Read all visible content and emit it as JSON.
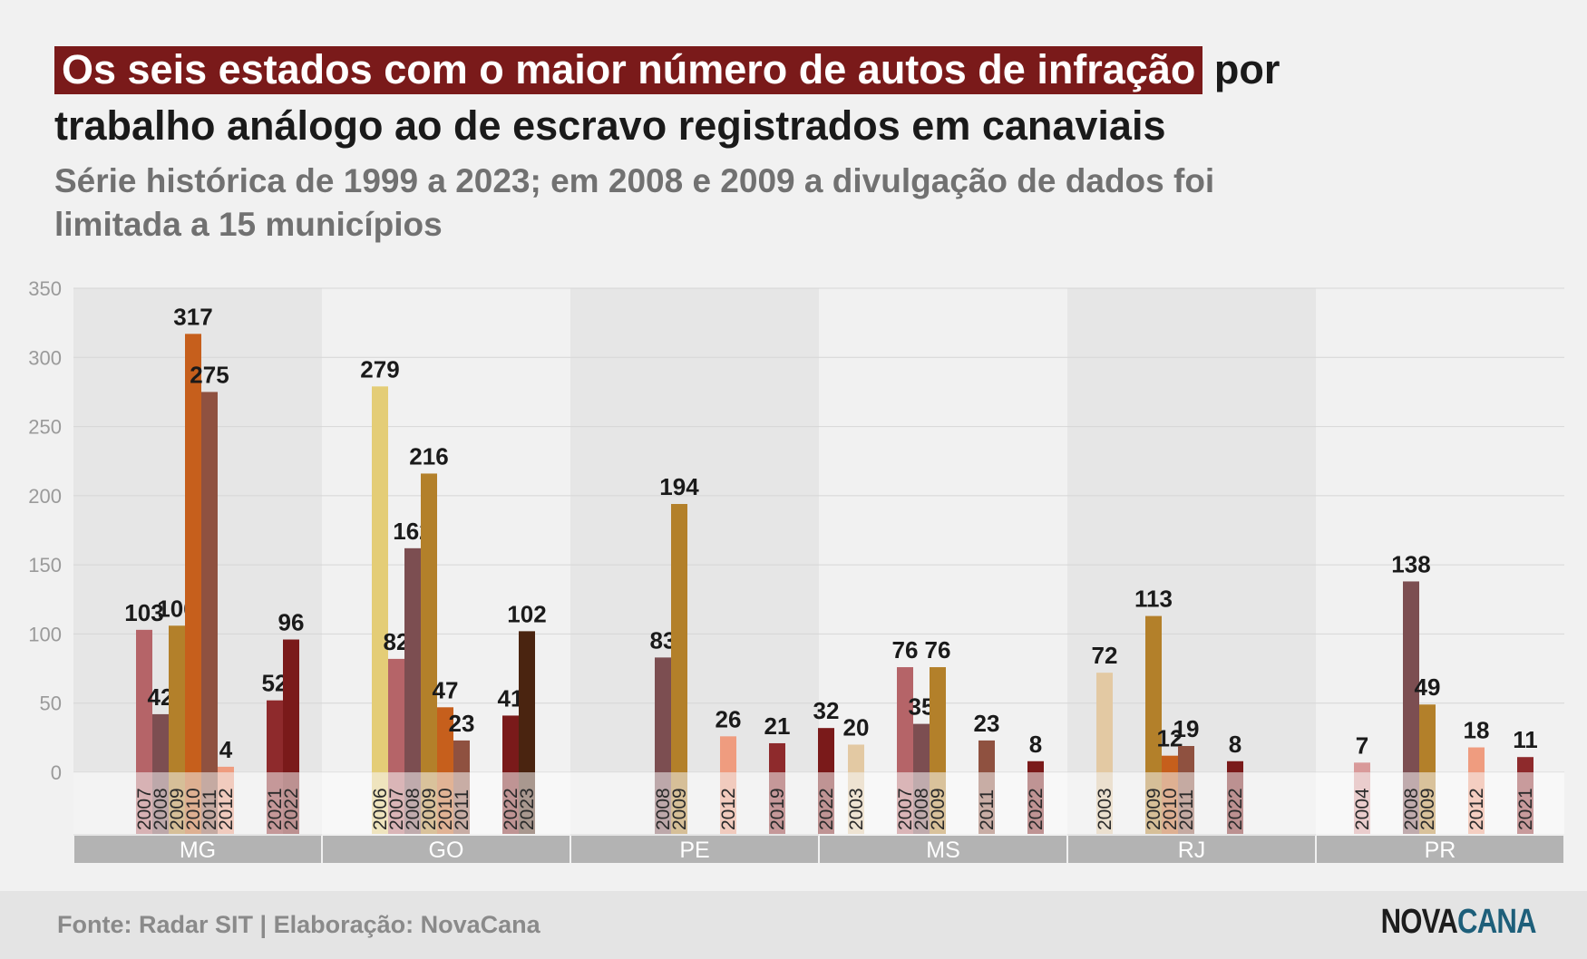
{
  "title": {
    "highlight": "Os seis estados com o maior número de autos de infração",
    "rest": " por trabalho análogo ao de escravo registrados em canaviais"
  },
  "subtitle": "Série histórica de 1999 a 2023; em 2008 e 2009 a divulgação de dados foi limitada a 15 municípios",
  "footer": {
    "source": "Fonte: Radar SIT | Elaboração: NovaCana",
    "logo_part1": "NOVA",
    "logo_part2": "CANA"
  },
  "colors": {
    "panel_shade": "#e6e6e6",
    "panel_light": "#f1f1f1",
    "state_bar": "#b3b3b3",
    "highlight": "#7a1a1a",
    "logo_accent": "#1e5f7a"
  },
  "year_colors": {
    "2003": "#e3c9a3",
    "2004": "#d99a9a",
    "2006": "#e4cd77",
    "2007": "#b56468",
    "2008": "#7c4e51",
    "2009": "#b3802a",
    "2010": "#c65f1c",
    "2011": "#8f5140",
    "2012": "#ef9c7f",
    "2019": "#8e2a2c",
    "2021": "#8e2a2c",
    "2022": "#7a1a1a",
    "2023": "#4a2410"
  },
  "chart_data": {
    "type": "bar",
    "ylim": [
      0,
      350
    ],
    "yticks": [
      0,
      50,
      100,
      150,
      200,
      250,
      300,
      350
    ],
    "grid": true,
    "groups": [
      {
        "state": "MG",
        "bars": [
          {
            "year": "2007",
            "value": 103
          },
          {
            "year": "2008",
            "value": 42
          },
          {
            "year": "2009",
            "value": 106
          },
          {
            "year": "2010",
            "value": 317
          },
          {
            "year": "2011",
            "value": 275
          },
          {
            "year": "2012",
            "value": 4
          },
          {
            "year": "2021",
            "value": 52
          },
          {
            "year": "2022",
            "value": 96
          }
        ]
      },
      {
        "state": "GO",
        "bars": [
          {
            "year": "2006",
            "value": 279
          },
          {
            "year": "2007",
            "value": 82
          },
          {
            "year": "2008",
            "value": 162
          },
          {
            "year": "2009",
            "value": 216
          },
          {
            "year": "2010",
            "value": 47
          },
          {
            "year": "2011",
            "value": 23
          },
          {
            "year": "2022",
            "value": 41
          },
          {
            "year": "2023",
            "value": 102
          }
        ]
      },
      {
        "state": "PE",
        "bars": [
          {
            "year": "2008",
            "value": 83
          },
          {
            "year": "2009",
            "value": 194
          },
          {
            "year": "2012",
            "value": 26
          },
          {
            "year": "2019",
            "value": 21
          },
          {
            "year": "2022",
            "value": 32
          }
        ]
      },
      {
        "state": "MS",
        "bars": [
          {
            "year": "2003",
            "value": 20
          },
          {
            "year": "2007",
            "value": 76
          },
          {
            "year": "2008",
            "value": 35
          },
          {
            "year": "2009",
            "value": 76
          },
          {
            "year": "2011",
            "value": 23
          },
          {
            "year": "2022",
            "value": 8
          }
        ]
      },
      {
        "state": "RJ",
        "bars": [
          {
            "year": "2003",
            "value": 72
          },
          {
            "year": "2009",
            "value": 113
          },
          {
            "year": "2010",
            "value": 12
          },
          {
            "year": "2011",
            "value": 19
          },
          {
            "year": "2022",
            "value": 8
          }
        ]
      },
      {
        "state": "PR",
        "bars": [
          {
            "year": "2004",
            "value": 7
          },
          {
            "year": "2008",
            "value": 138
          },
          {
            "year": "2009",
            "value": 49
          },
          {
            "year": "2012",
            "value": 18
          },
          {
            "year": "2021",
            "value": 11
          }
        ]
      }
    ]
  }
}
